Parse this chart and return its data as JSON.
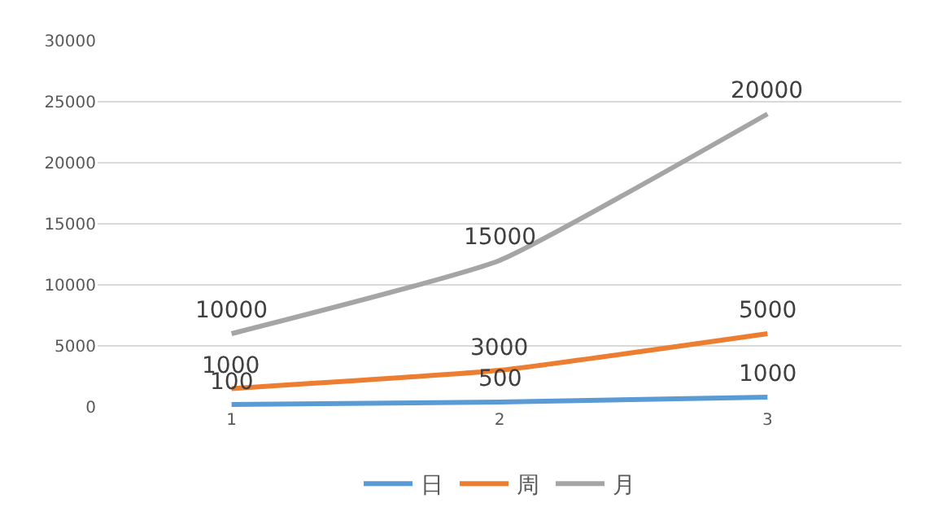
{
  "chart_data": {
    "type": "line",
    "categories": [
      "1",
      "2",
      "3"
    ],
    "series": [
      {
        "name": "日",
        "color": "#5b9bd5",
        "values": [
          200,
          400,
          800
        ]
      },
      {
        "name": "周",
        "color": "#ed7d31",
        "values": [
          1500,
          3000,
          6000
        ]
      },
      {
        "name": "月",
        "color": "#a5a5a5",
        "values": [
          6000,
          12000,
          24000
        ]
      }
    ],
    "annotations": [
      {
        "text": "100",
        "x": "1",
        "y": 200
      },
      {
        "text": "500",
        "x": "2",
        "y": 400
      },
      {
        "text": "1000",
        "x": "3",
        "y": 800
      },
      {
        "text": "1000",
        "x": "1",
        "y": 1500
      },
      {
        "text": "3000",
        "x": "2",
        "y": 3000
      },
      {
        "text": "5000",
        "x": "3",
        "y": 6000
      },
      {
        "text": "10000",
        "x": "1",
        "y": 6000
      },
      {
        "text": "15000",
        "x": "2",
        "y": 12000
      },
      {
        "text": "20000",
        "x": "3",
        "y": 24000
      }
    ],
    "ylim": [
      0,
      30000
    ],
    "yticks": [
      0,
      5000,
      10000,
      15000,
      20000,
      25000,
      30000
    ],
    "grid": "y",
    "legend": "bottom",
    "marker": "none",
    "line_style": "solid"
  }
}
